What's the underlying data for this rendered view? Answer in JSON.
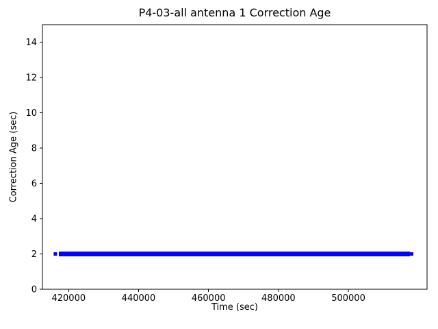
{
  "chart_data": {
    "type": "line",
    "title": "P4-03-all antenna 1 Correction Age",
    "xlabel": "Time (sec)",
    "ylabel": "Correction Age (sec)",
    "xlim": [
      412500,
      522500
    ],
    "ylim": [
      0,
      15
    ],
    "xticks": {
      "values": [
        420000,
        440000,
        460000,
        480000,
        500000
      ],
      "labels": [
        "420000",
        "440000",
        "460000",
        "480000",
        "500000"
      ]
    },
    "yticks": {
      "values": [
        0,
        2,
        4,
        6,
        8,
        10,
        12,
        14
      ],
      "labels": [
        "0",
        "2",
        "4",
        "6",
        "8",
        "10",
        "12",
        "14"
      ]
    },
    "grid": false,
    "legend": "none",
    "background_color": "#ffffff",
    "spine_color": "#000000",
    "series": [
      {
        "name": "correction-age",
        "color": "#0000ff",
        "y_value": 2,
        "dense_segment_x": [
          417200,
          517600
        ],
        "isolated_points_x": [
          416200,
          518100
        ],
        "description": "Constant correction age of 2 sec rendered as a thick band of densely overlapping blue points, with single detached points at each end"
      }
    ]
  }
}
